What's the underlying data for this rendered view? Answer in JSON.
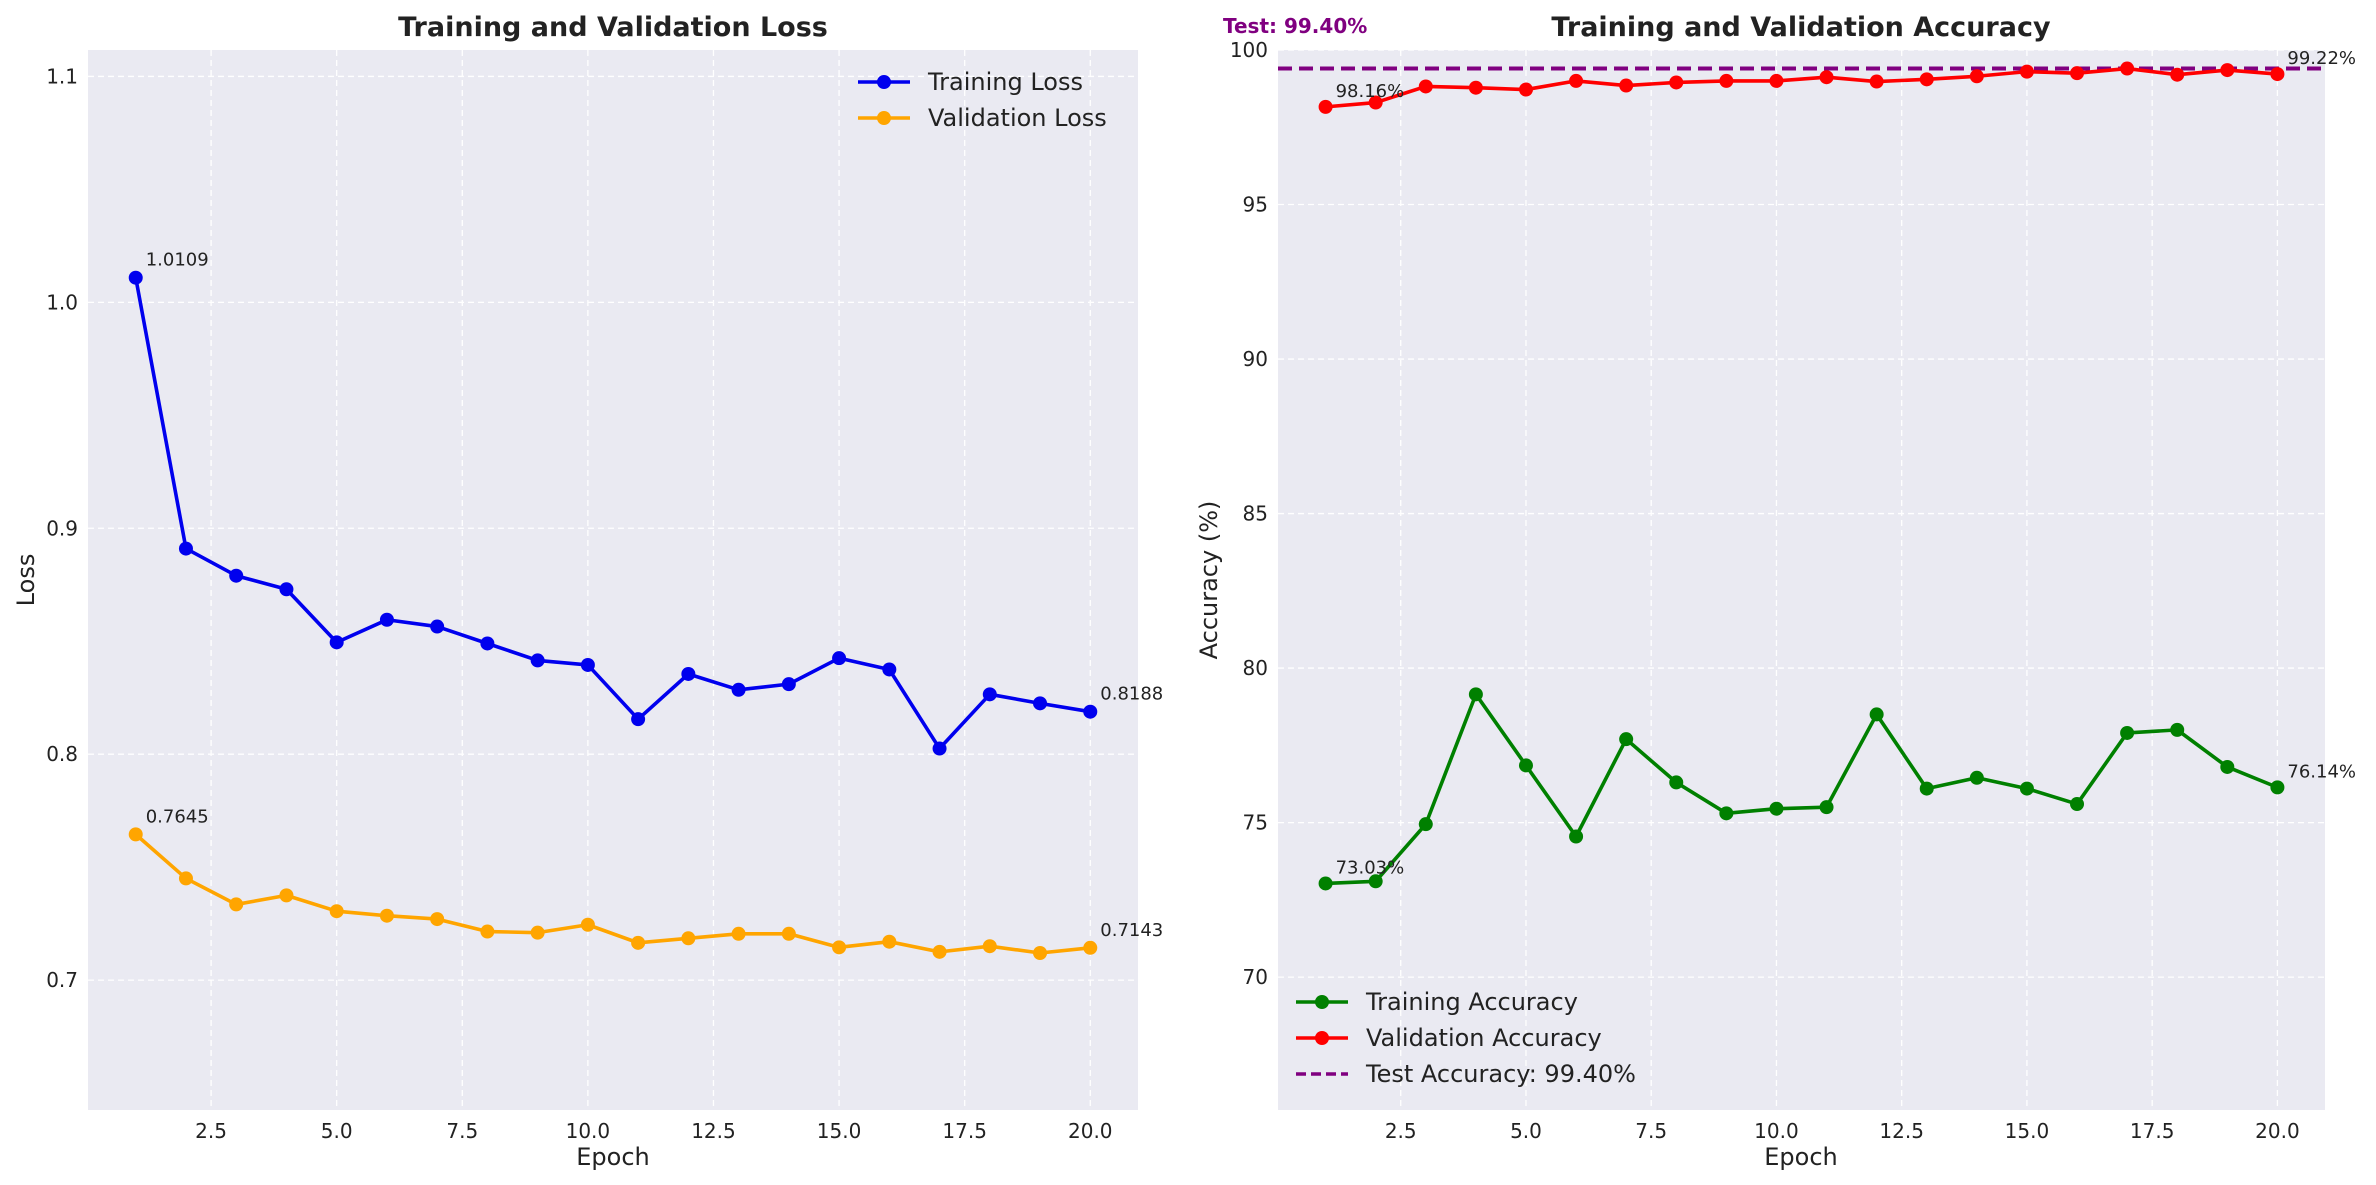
{
  "chart_data": [
    {
      "type": "line",
      "title": "Training and Validation Loss",
      "xlabel": "Epoch",
      "ylabel": "Loss",
      "xlim": [
        0.05,
        20.95
      ],
      "ylim": [
        0.6425,
        1.1117
      ],
      "xticks": [
        2.5,
        5.0,
        7.5,
        10.0,
        12.5,
        15.0,
        17.5,
        20.0
      ],
      "xtick_labels": [
        "2.5",
        "5.0",
        "7.5",
        "10.0",
        "12.5",
        "15.0",
        "17.5",
        "20.0"
      ],
      "yticks": [
        0.7,
        0.8,
        0.9,
        1.0,
        1.1
      ],
      "ytick_labels": [
        "0.7",
        "0.8",
        "0.9",
        "1.0",
        "1.1"
      ],
      "grid": true,
      "legend_position": "upper-right",
      "x": [
        1,
        2,
        3,
        4,
        5,
        6,
        7,
        8,
        9,
        10,
        11,
        12,
        13,
        14,
        15,
        16,
        17,
        18,
        19,
        20
      ],
      "series": [
        {
          "name": "Training Loss",
          "color": "#0000ee",
          "values": [
            1.0109,
            0.891,
            0.879,
            0.873,
            0.8495,
            0.8595,
            0.8565,
            0.849,
            0.8415,
            0.8395,
            0.8155,
            0.8355,
            0.8285,
            0.831,
            0.8425,
            0.8375,
            0.8025,
            0.8265,
            0.8225,
            0.8188
          ]
        },
        {
          "name": "Validation Loss",
          "color": "#ffa500",
          "values": [
            0.7645,
            0.745,
            0.7335,
            0.7375,
            0.7305,
            0.7285,
            0.727,
            0.7215,
            0.721,
            0.7245,
            0.7165,
            0.7185,
            0.7205,
            0.7205,
            0.7145,
            0.717,
            0.7125,
            0.715,
            0.712,
            0.7143
          ]
        }
      ],
      "annotations": [
        {
          "series": 0,
          "index": 0,
          "text": "1.0109"
        },
        {
          "series": 0,
          "index": 19,
          "text": "0.8188"
        },
        {
          "series": 1,
          "index": 0,
          "text": "0.7645"
        },
        {
          "series": 1,
          "index": 19,
          "text": "0.7143"
        }
      ]
    },
    {
      "type": "line",
      "title": "Training and Validation Accuracy",
      "xlabel": "Epoch",
      "ylabel": "Accuracy (%)",
      "xlim": [
        0.05,
        20.95
      ],
      "ylim": [
        65.7,
        100
      ],
      "xticks": [
        2.5,
        5.0,
        7.5,
        10.0,
        12.5,
        15.0,
        17.5,
        20.0
      ],
      "xtick_labels": [
        "2.5",
        "5.0",
        "7.5",
        "10.0",
        "12.5",
        "15.0",
        "17.5",
        "20.0"
      ],
      "yticks": [
        70,
        75,
        80,
        85,
        90,
        95,
        100
      ],
      "ytick_labels": [
        "70",
        "75",
        "80",
        "85",
        "90",
        "95",
        "100"
      ],
      "grid": true,
      "legend_position": "lower-left",
      "x": [
        1,
        2,
        3,
        4,
        5,
        6,
        7,
        8,
        9,
        10,
        11,
        12,
        13,
        14,
        15,
        16,
        17,
        18,
        19,
        20
      ],
      "series": [
        {
          "name": "Training Accuracy",
          "color": "#008000",
          "values": [
            73.03,
            73.1,
            74.95,
            79.15,
            76.85,
            74.55,
            77.7,
            76.3,
            75.3,
            75.45,
            75.5,
            78.5,
            76.1,
            76.45,
            76.1,
            75.6,
            77.9,
            78.0,
            76.8,
            76.14
          ]
        },
        {
          "name": "Validation Accuracy",
          "color": "#ff0000",
          "values": [
            98.16,
            98.3,
            98.82,
            98.78,
            98.72,
            99.0,
            98.85,
            98.95,
            99.0,
            99.0,
            99.12,
            98.98,
            99.05,
            99.15,
            99.3,
            99.25,
            99.4,
            99.2,
            99.35,
            99.22
          ]
        }
      ],
      "reference_line": {
        "name": "Test Accuracy: 99.40%",
        "value": 99.4,
        "color": "#800080"
      },
      "side_label": "Test: 99.40%",
      "annotations": [
        {
          "series": 0,
          "index": 0,
          "text": "73.03%"
        },
        {
          "series": 0,
          "index": 19,
          "text": "76.14%"
        },
        {
          "series": 1,
          "index": 0,
          "text": "98.16%"
        },
        {
          "series": 1,
          "index": 19,
          "text": "99.22%"
        }
      ]
    }
  ]
}
